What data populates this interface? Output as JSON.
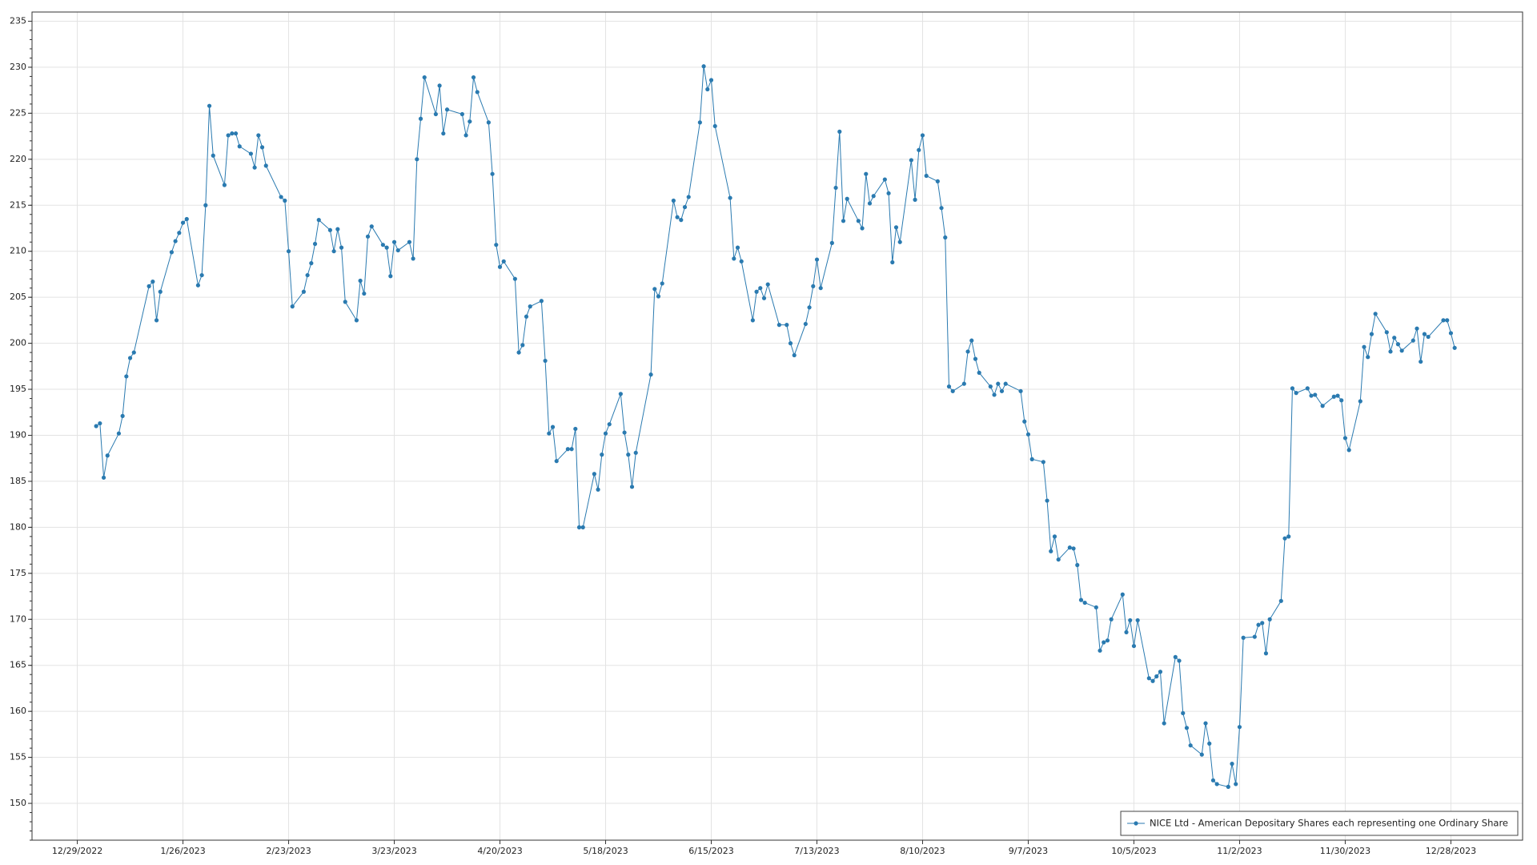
{
  "chart_data": {
    "type": "line",
    "x": [
      "1/3/2023",
      "1/4/2023",
      "1/5/2023",
      "1/6/2023",
      "1/9/2023",
      "1/10/2023",
      "1/11/2023",
      "1/12/2023",
      "1/13/2023",
      "1/17/2023",
      "1/18/2023",
      "1/19/2023",
      "1/20/2023",
      "1/23/2023",
      "1/24/2023",
      "1/25/2023",
      "1/26/2023",
      "1/27/2023",
      "1/30/2023",
      "1/31/2023",
      "2/1/2023",
      "2/2/2023",
      "2/3/2023",
      "2/6/2023",
      "2/7/2023",
      "2/8/2023",
      "2/9/2023",
      "2/10/2023",
      "2/13/2023",
      "2/14/2023",
      "2/15/2023",
      "2/16/2023",
      "2/17/2023",
      "2/21/2023",
      "2/22/2023",
      "2/23/2023",
      "2/24/2023",
      "2/27/2023",
      "2/28/2023",
      "3/1/2023",
      "3/2/2023",
      "3/3/2023",
      "3/6/2023",
      "3/7/2023",
      "3/8/2023",
      "3/9/2023",
      "3/10/2023",
      "3/13/2023",
      "3/14/2023",
      "3/15/2023",
      "3/16/2023",
      "3/17/2023",
      "3/20/2023",
      "3/21/2023",
      "3/22/2023",
      "3/23/2023",
      "3/24/2023",
      "3/27/2023",
      "3/28/2023",
      "3/29/2023",
      "3/30/2023",
      "3/31/2023",
      "4/3/2023",
      "4/4/2023",
      "4/5/2023",
      "4/6/2023",
      "4/10/2023",
      "4/11/2023",
      "4/12/2023",
      "4/13/2023",
      "4/14/2023",
      "4/17/2023",
      "4/18/2023",
      "4/19/2023",
      "4/20/2023",
      "4/21/2023",
      "4/24/2023",
      "4/25/2023",
      "4/26/2023",
      "4/27/2023",
      "4/28/2023",
      "5/1/2023",
      "5/2/2023",
      "5/3/2023",
      "5/4/2023",
      "5/5/2023",
      "5/8/2023",
      "5/9/2023",
      "5/10/2023",
      "5/11/2023",
      "5/12/2023",
      "5/15/2023",
      "5/16/2023",
      "5/17/2023",
      "5/18/2023",
      "5/19/2023",
      "5/22/2023",
      "5/23/2023",
      "5/24/2023",
      "5/25/2023",
      "5/26/2023",
      "5/30/2023",
      "5/31/2023",
      "6/1/2023",
      "6/2/2023",
      "6/5/2023",
      "6/6/2023",
      "6/7/2023",
      "6/8/2023",
      "6/9/2023",
      "6/12/2023",
      "6/13/2023",
      "6/14/2023",
      "6/15/2023",
      "6/16/2023",
      "6/20/2023",
      "6/21/2023",
      "6/22/2023",
      "6/23/2023",
      "6/26/2023",
      "6/27/2023",
      "6/28/2023",
      "6/29/2023",
      "6/30/2023",
      "7/3/2023",
      "7/5/2023",
      "7/6/2023",
      "7/7/2023",
      "7/10/2023",
      "7/11/2023",
      "7/12/2023",
      "7/13/2023",
      "7/14/2023",
      "7/17/2023",
      "7/18/2023",
      "7/19/2023",
      "7/20/2023",
      "7/21/2023",
      "7/24/2023",
      "7/25/2023",
      "7/26/2023",
      "7/27/2023",
      "7/28/2023",
      "7/31/2023",
      "8/1/2023",
      "8/2/2023",
      "8/3/2023",
      "8/4/2023",
      "8/7/2023",
      "8/8/2023",
      "8/9/2023",
      "8/10/2023",
      "8/11/2023",
      "8/14/2023",
      "8/15/2023",
      "8/16/2023",
      "8/17/2023",
      "8/18/2023",
      "8/21/2023",
      "8/22/2023",
      "8/23/2023",
      "8/24/2023",
      "8/25/2023",
      "8/28/2023",
      "8/29/2023",
      "8/30/2023",
      "8/31/2023",
      "9/1/2023",
      "9/5/2023",
      "9/6/2023",
      "9/7/2023",
      "9/8/2023",
      "9/11/2023",
      "9/12/2023",
      "9/13/2023",
      "9/14/2023",
      "9/15/2023",
      "9/18/2023",
      "9/19/2023",
      "9/20/2023",
      "9/21/2023",
      "9/22/2023",
      "9/25/2023",
      "9/26/2023",
      "9/27/2023",
      "9/28/2023",
      "9/29/2023",
      "10/2/2023",
      "10/3/2023",
      "10/4/2023",
      "10/5/2023",
      "10/6/2023",
      "10/9/2023",
      "10/10/2023",
      "10/11/2023",
      "10/12/2023",
      "10/13/2023",
      "10/16/2023",
      "10/17/2023",
      "10/18/2023",
      "10/19/2023",
      "10/20/2023",
      "10/23/2023",
      "10/24/2023",
      "10/25/2023",
      "10/26/2023",
      "10/27/2023",
      "10/30/2023",
      "10/31/2023",
      "11/1/2023",
      "11/2/2023",
      "11/3/2023",
      "11/6/2023",
      "11/7/2023",
      "11/8/2023",
      "11/9/2023",
      "11/10/2023",
      "11/13/2023",
      "11/14/2023",
      "11/15/2023",
      "11/16/2023",
      "11/17/2023",
      "11/20/2023",
      "11/21/2023",
      "11/22/2023",
      "11/24/2023",
      "11/27/2023",
      "11/28/2023",
      "11/29/2023",
      "11/30/2023",
      "12/1/2023",
      "12/4/2023",
      "12/5/2023",
      "12/6/2023",
      "12/7/2023",
      "12/8/2023",
      "12/11/2023",
      "12/12/2023",
      "12/13/2023",
      "12/14/2023",
      "12/15/2023",
      "12/18/2023",
      "12/19/2023",
      "12/20/2023",
      "12/21/2023",
      "12/22/2023",
      "12/26/2023",
      "12/27/2023",
      "12/28/2023",
      "12/29/2023"
    ],
    "series": [
      {
        "name": "NICE Ltd - American Depositary Shares each representing one Ordinary Share",
        "color": "#2a7ab0",
        "values": [
          191.0,
          191.3,
          185.4,
          187.8,
          190.2,
          192.1,
          196.4,
          198.4,
          199.0,
          206.2,
          206.7,
          202.5,
          205.6,
          209.9,
          211.1,
          212.0,
          213.1,
          213.5,
          206.3,
          207.4,
          215.0,
          225.8,
          220.4,
          217.2,
          222.6,
          222.8,
          222.8,
          221.4,
          220.6,
          219.1,
          222.6,
          221.3,
          219.3,
          215.9,
          215.5,
          210.0,
          204.0,
          205.6,
          207.4,
          208.7,
          210.8,
          213.4,
          212.3,
          210.0,
          212.4,
          210.4,
          204.5,
          202.5,
          206.8,
          205.4,
          211.6,
          212.7,
          210.7,
          210.4,
          207.3,
          211.0,
          210.1,
          211.0,
          209.2,
          220.0,
          224.4,
          228.9,
          224.9,
          228.0,
          222.8,
          225.4,
          224.9,
          222.6,
          224.1,
          228.9,
          227.3,
          224.0,
          218.4,
          210.7,
          208.3,
          208.9,
          207.0,
          199.0,
          199.8,
          202.9,
          204.0,
          204.6,
          198.1,
          190.2,
          190.9,
          187.2,
          188.5,
          188.5,
          190.7,
          180.0,
          180.0,
          185.8,
          184.1,
          187.9,
          190.2,
          191.2,
          194.5,
          190.3,
          187.9,
          184.4,
          188.1,
          196.6,
          205.9,
          205.1,
          206.5,
          215.5,
          213.7,
          213.4,
          214.8,
          215.9,
          224.0,
          230.1,
          227.6,
          228.6,
          223.6,
          215.8,
          209.2,
          210.4,
          208.9,
          202.5,
          205.6,
          206.0,
          204.9,
          206.4,
          202.0,
          202.0,
          200.0,
          198.7,
          202.1,
          203.9,
          206.2,
          209.1,
          206.0,
          210.9,
          216.9,
          223.0,
          213.3,
          215.7,
          213.3,
          212.5,
          218.4,
          215.2,
          216.0,
          217.8,
          216.3,
          208.8,
          212.6,
          211.0,
          219.9,
          215.6,
          221.0,
          222.6,
          218.2,
          217.6,
          214.7,
          211.5,
          195.3,
          194.8,
          195.6,
          199.1,
          200.3,
          198.3,
          196.8,
          195.3,
          194.4,
          195.6,
          194.8,
          195.6,
          194.8,
          191.5,
          190.1,
          187.4,
          187.1,
          182.9,
          177.4,
          179.0,
          176.5,
          177.8,
          177.7,
          175.9,
          172.1,
          171.8,
          171.3,
          166.6,
          167.5,
          167.7,
          170.0,
          172.7,
          168.6,
          169.9,
          167.1,
          169.9,
          163.6,
          163.3,
          163.8,
          164.3,
          158.7,
          165.9,
          165.5,
          159.8,
          158.2,
          156.3,
          155.3,
          158.7,
          156.5,
          152.5,
          152.1,
          151.8,
          154.3,
          152.1,
          158.3,
          168.0,
          168.1,
          169.4,
          169.6,
          166.3,
          170.0,
          172.0,
          178.8,
          179.0,
          195.1,
          194.6,
          195.1,
          194.3,
          194.4,
          193.2,
          194.2,
          194.3,
          193.8,
          189.7,
          188.4,
          193.7,
          199.6,
          198.5,
          201.0,
          203.2,
          201.2,
          199.1,
          200.6,
          199.9,
          199.2,
          200.3,
          201.6,
          198.0,
          201.0,
          200.7,
          202.5,
          202.5,
          201.1,
          199.5
        ]
      }
    ],
    "xlim": [
      "12/17/2022",
      "1/16/2024"
    ],
    "xticks": [
      "12/29/2022",
      "1/26/2023",
      "2/23/2023",
      "3/23/2023",
      "4/20/2023",
      "5/18/2023",
      "6/15/2023",
      "7/13/2023",
      "8/10/2023",
      "9/7/2023",
      "10/5/2023",
      "11/2/2023",
      "11/30/2023",
      "12/28/2023"
    ],
    "ylim": [
      146,
      236
    ],
    "yticks": [
      150,
      155,
      160,
      165,
      170,
      175,
      180,
      185,
      190,
      195,
      200,
      205,
      210,
      215,
      220,
      225,
      230,
      235
    ],
    "grid": true,
    "legend_position": "lower right"
  }
}
